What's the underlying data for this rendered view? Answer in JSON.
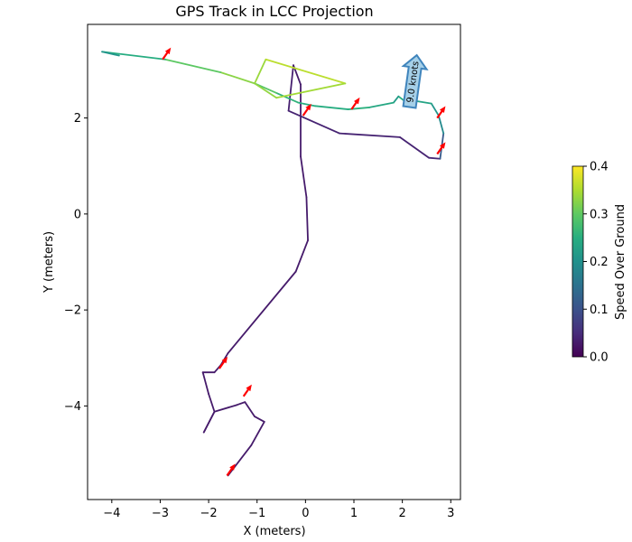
{
  "chart_data": {
    "type": "line",
    "title": "GPS Track in LCC Projection",
    "xlabel": "X (meters)",
    "ylabel": "Y (meters)",
    "xlim": [
      -4.5,
      3.2
    ],
    "ylim": [
      -5.95,
      3.95
    ],
    "xticks": [
      -4,
      -3,
      -2,
      -1,
      0,
      1,
      2,
      3
    ],
    "xtick_labels": [
      "−4",
      "−3",
      "−2",
      "−1",
      "0",
      "1",
      "2",
      "3"
    ],
    "yticks": [
      -4,
      -2,
      0,
      2
    ],
    "ytick_labels": [
      "−4",
      "−2",
      "0",
      "2"
    ],
    "grid": false,
    "colormap": "viridis",
    "track": {
      "points": [
        [
          -1.6,
          -5.45
        ],
        [
          -1.12,
          -4.82
        ],
        [
          -0.85,
          -4.33
        ],
        [
          -1.05,
          -4.22
        ],
        [
          -1.25,
          -3.92
        ],
        [
          -1.42,
          -3.98
        ],
        [
          -1.88,
          -4.12
        ],
        [
          -2.1,
          -4.55
        ],
        [
          -1.88,
          -4.12
        ],
        [
          -2.0,
          -3.75
        ],
        [
          -2.12,
          -3.3
        ],
        [
          -1.88,
          -3.3
        ],
        [
          -1.75,
          -3.15
        ],
        [
          -1.6,
          -2.9
        ],
        [
          -0.2,
          -1.2
        ],
        [
          0.05,
          -0.55
        ],
        [
          0.02,
          0.35
        ],
        [
          -0.1,
          1.2
        ],
        [
          -0.1,
          2.7
        ],
        [
          -0.25,
          3.1
        ],
        [
          -0.35,
          2.15
        ],
        [
          0.7,
          1.68
        ],
        [
          1.95,
          1.6
        ],
        [
          2.55,
          1.17
        ],
        [
          2.78,
          1.15
        ],
        [
          2.85,
          1.68
        ],
        [
          2.75,
          2.05
        ],
        [
          2.6,
          2.3
        ],
        [
          2.3,
          2.35
        ],
        [
          2.05,
          2.35
        ],
        [
          1.92,
          2.45
        ],
        [
          1.82,
          2.32
        ],
        [
          1.32,
          2.22
        ],
        [
          0.88,
          2.18
        ],
        [
          0.2,
          2.25
        ],
        [
          -0.15,
          2.32
        ],
        [
          -0.6,
          2.52
        ],
        [
          -1.05,
          2.72
        ],
        [
          -0.82,
          3.22
        ],
        [
          0.82,
          2.72
        ],
        [
          -0.6,
          2.42
        ],
        [
          -1.05,
          2.72
        ],
        [
          -1.75,
          2.95
        ],
        [
          -2.9,
          3.22
        ],
        [
          -4.2,
          3.38
        ],
        [
          -3.85,
          3.3
        ]
      ],
      "speeds": [
        0.03,
        0.03,
        0.03,
        0.03,
        0.03,
        0.03,
        0.03,
        0.03,
        0.03,
        0.03,
        0.03,
        0.03,
        0.03,
        0.03,
        0.03,
        0.03,
        0.03,
        0.03,
        0.03,
        0.03,
        0.04,
        0.04,
        0.04,
        0.04,
        0.05,
        0.18,
        0.2,
        0.22,
        0.25,
        0.28,
        0.22,
        0.22,
        0.26,
        0.25,
        0.25,
        0.25,
        0.27,
        0.32,
        0.36,
        0.36,
        0.33,
        0.34,
        0.32,
        0.28,
        0.22,
        0.2
      ]
    },
    "red_arrows": [
      [
        -1.62,
        -5.45
      ],
      [
        -1.28,
        -3.8
      ],
      [
        -1.78,
        -3.22
      ],
      [
        -2.95,
        3.22
      ],
      [
        -0.05,
        2.05
      ],
      [
        0.95,
        2.18
      ],
      [
        2.72,
        2.0
      ],
      [
        2.72,
        1.25
      ]
    ],
    "wind_arrow": {
      "x": 2.22,
      "y": 2.75,
      "label": "9.0 knots"
    },
    "colorbar": {
      "label": "Speed Over Ground",
      "vmin": 0.0,
      "vmax": 0.4,
      "ticks": [
        0.0,
        0.1,
        0.2,
        0.3,
        0.4
      ],
      "tick_labels": [
        "0.0",
        "0.1",
        "0.2",
        "0.3",
        "0.4"
      ]
    },
    "colors": {
      "red_arrow": "#ff0000",
      "wind_fill": "#a6d0e8",
      "wind_edge": "#3f84bc"
    }
  }
}
